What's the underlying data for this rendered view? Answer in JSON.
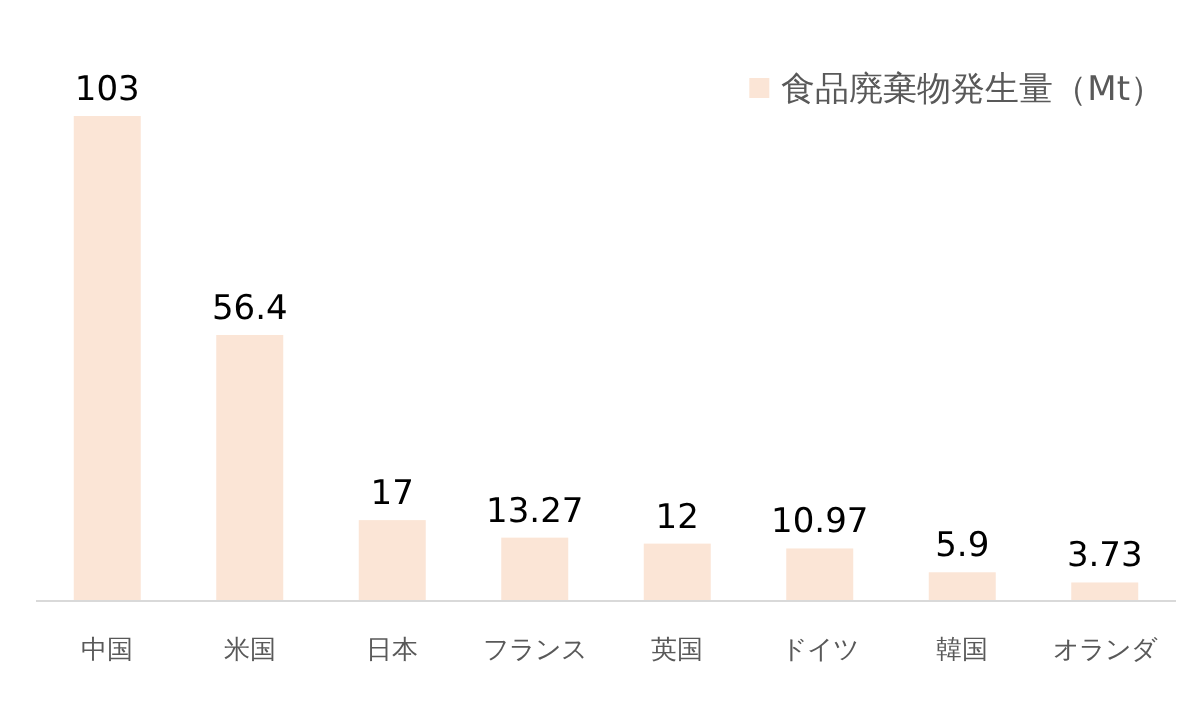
{
  "chart_data": {
    "type": "bar",
    "categories": [
      "中国",
      "米国",
      "日本",
      "フランス",
      "英国",
      "ドイツ",
      "韓国",
      "オランダ"
    ],
    "series": [
      {
        "name": "食品廃棄物発生量（Mt）",
        "color": "#fbe5d6",
        "values": [
          103,
          56.4,
          17,
          13.27,
          12,
          10.97,
          5.9,
          3.73
        ]
      }
    ],
    "data_labels": true,
    "legend": "top right"
  }
}
